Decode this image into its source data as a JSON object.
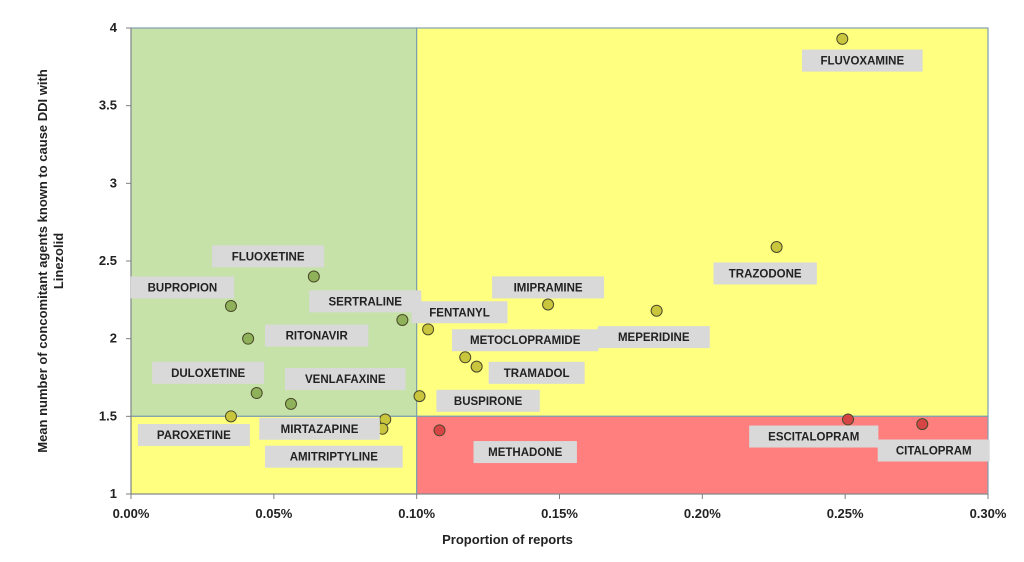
{
  "chart_data": {
    "type": "scatter",
    "xlabel": "Proportion of reports",
    "ylabel_lines": [
      "Mean number of concomitant agents known to cause DDI with",
      "Linezolid"
    ],
    "xlim": [
      0,
      0.3
    ],
    "ylim": [
      1,
      4
    ],
    "x_ticks": [
      0,
      0.05,
      0.1,
      0.15,
      0.2,
      0.25,
      0.3
    ],
    "x_tick_labels": [
      "0.00%",
      "0.05%",
      "0.10%",
      "0.15%",
      "0.20%",
      "0.25%",
      "0.30%"
    ],
    "y_ticks": [
      1,
      1.5,
      2,
      2.5,
      3,
      3.5,
      4
    ],
    "y_tick_labels": [
      "1",
      "1.5",
      "2",
      "2.5",
      "3",
      "3.5",
      "4"
    ],
    "thresholds": {
      "x": 0.1,
      "y": 1.5
    },
    "zone_colors": {
      "green": "#c6e2a8",
      "yellow": "#ffff80",
      "red": "#ff7f7f",
      "border": "#7f9fb0"
    },
    "point_colors": {
      "green": "#8fb15a",
      "yellow": "#c9c53c",
      "red": "#d64545"
    },
    "label_box_color": "#d9d9d9",
    "points": [
      {
        "name": "FLUVOXAMINE",
        "x": 0.249,
        "y": 3.93,
        "zone": "yellow",
        "lx": 0.256,
        "ly": 3.79
      },
      {
        "name": "TRAZODONE",
        "x": 0.226,
        "y": 2.59,
        "zone": "yellow",
        "lx": 0.222,
        "ly": 2.42
      },
      {
        "name": "IMIPRAMINE",
        "x": 0.146,
        "y": 2.22,
        "zone": "yellow",
        "lx": 0.146,
        "ly": 2.33
      },
      {
        "name": "MEPERIDINE",
        "x": 0.184,
        "y": 2.18,
        "zone": "yellow",
        "lx": 0.183,
        "ly": 2.01
      },
      {
        "name": "FENTANYL",
        "x": 0.104,
        "y": 2.06,
        "zone": "yellow",
        "lx": 0.115,
        "ly": 2.17
      },
      {
        "name": "METOCLOPRAMIDE",
        "x": 0.117,
        "y": 1.88,
        "zone": "yellow",
        "lx": 0.138,
        "ly": 1.99
      },
      {
        "name": "TRAMADOL",
        "x": 0.121,
        "y": 1.82,
        "zone": "yellow",
        "lx": 0.142,
        "ly": 1.78
      },
      {
        "name": "BUSPIRONE",
        "x": 0.101,
        "y": 1.63,
        "zone": "yellow",
        "lx": 0.125,
        "ly": 1.6
      },
      {
        "name": "FLUOXETINE",
        "x": 0.064,
        "y": 2.4,
        "zone": "green",
        "lx": 0.048,
        "ly": 2.53
      },
      {
        "name": "BUPROPION",
        "x": 0.035,
        "y": 2.21,
        "zone": "green",
        "lx": 0.018,
        "ly": 2.33
      },
      {
        "name": "SERTRALINE",
        "x": 0.095,
        "y": 2.12,
        "zone": "green",
        "lx": 0.082,
        "ly": 2.24
      },
      {
        "name": "RITONAVIR",
        "x": 0.041,
        "y": 2.0,
        "zone": "green",
        "lx": 0.065,
        "ly": 2.02
      },
      {
        "name": "DULOXETINE",
        "x": 0.044,
        "y": 1.65,
        "zone": "green",
        "lx": 0.027,
        "ly": 1.78
      },
      {
        "name": "VENLAFAXINE",
        "x": 0.056,
        "y": 1.58,
        "zone": "green",
        "lx": 0.075,
        "ly": 1.74
      },
      {
        "name": "PAROXETINE",
        "x": 0.035,
        "y": 1.5,
        "zone": "yellow",
        "lx": 0.022,
        "ly": 1.38
      },
      {
        "name": "MIRTAZAPINE",
        "x": 0.089,
        "y": 1.48,
        "zone": "yellow",
        "lx": 0.066,
        "ly": 1.42
      },
      {
        "name": "AMITRIPTYLINE",
        "x": 0.088,
        "y": 1.42,
        "zone": "yellow",
        "lx": 0.071,
        "ly": 1.24
      },
      {
        "name": "METHADONE",
        "x": 0.108,
        "y": 1.41,
        "zone": "red",
        "lx": 0.138,
        "ly": 1.27
      },
      {
        "name": "ESCITALOPRAM",
        "x": 0.251,
        "y": 1.48,
        "zone": "red",
        "lx": 0.239,
        "ly": 1.37
      },
      {
        "name": "CITALOPRAM",
        "x": 0.277,
        "y": 1.45,
        "zone": "red",
        "lx": 0.281,
        "ly": 1.28
      }
    ]
  }
}
